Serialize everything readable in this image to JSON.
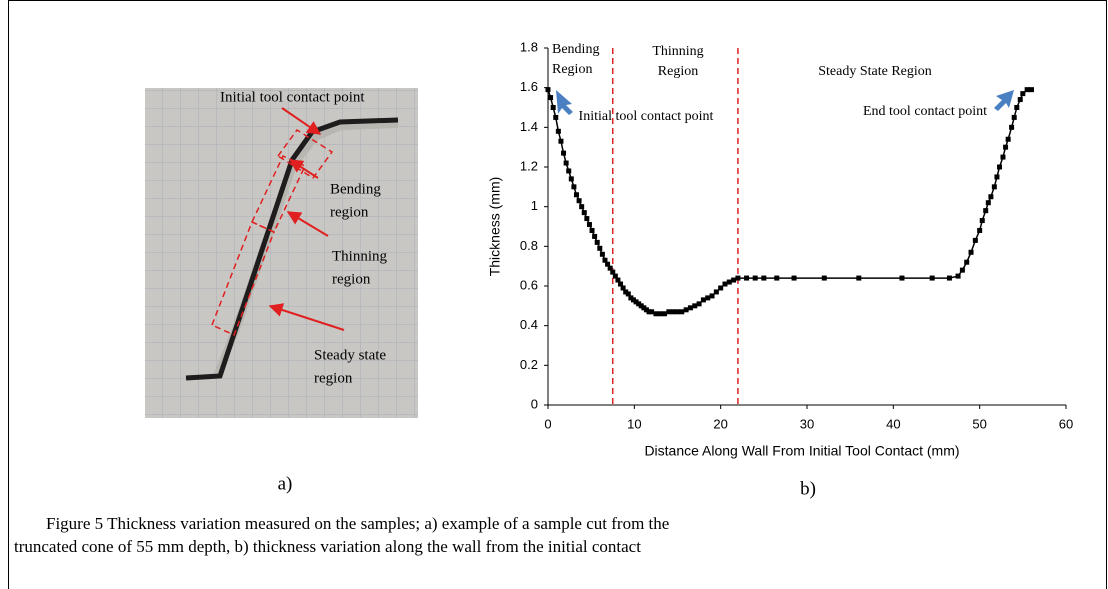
{
  "photo": {
    "labels": [
      [
        "Initial tool contact point"
      ],
      [
        "Bending",
        "region"
      ],
      [
        "Thinning",
        "region"
      ],
      [
        "Steady state",
        "region"
      ]
    ],
    "sublabel": "a)"
  },
  "chart_data": {
    "type": "line",
    "sublabel": "b)",
    "x_label": "Distance Along Wall From Initial Tool Contact (mm)",
    "y_label": "Thickness (mm)",
    "x": [
      0,
      0.3,
      0.6,
      0.9,
      1.2,
      1.5,
      1.8,
      2.1,
      2.4,
      2.7,
      3,
      3.3,
      3.6,
      3.9,
      4.2,
      4.5,
      4.8,
      5.1,
      5.4,
      5.7,
      6,
      6.3,
      6.6,
      6.9,
      7.2,
      7.5,
      7.8,
      8.1,
      8.4,
      8.7,
      9,
      9.3,
      9.6,
      9.9,
      10.2,
      10.5,
      10.8,
      11.1,
      11.4,
      11.7,
      12,
      12.5,
      13,
      13.5,
      14,
      14.5,
      15,
      15.5,
      16,
      16.5,
      17,
      17.5,
      18,
      18.5,
      19,
      19.5,
      20,
      20.5,
      21,
      21.5,
      22,
      23,
      24,
      25,
      26.5,
      28.5,
      32,
      36,
      41,
      44.5,
      46.5,
      47.5,
      48,
      48.5,
      49,
      49.5,
      50,
      50.3,
      50.7,
      51,
      51.3,
      51.7,
      52,
      52.3,
      52.7,
      53,
      53.3,
      53.7,
      54,
      54.3,
      54.7,
      55,
      55.5,
      56
    ],
    "series": [
      {
        "color": "#000000",
        "values": [
          1.59,
          1.55,
          1.5,
          1.45,
          1.38,
          1.33,
          1.27,
          1.22,
          1.18,
          1.14,
          1.1,
          1.06,
          1.03,
          1.0,
          0.97,
          0.94,
          0.91,
          0.88,
          0.85,
          0.82,
          0.79,
          0.76,
          0.73,
          0.71,
          0.69,
          0.67,
          0.65,
          0.63,
          0.61,
          0.59,
          0.57,
          0.56,
          0.54,
          0.53,
          0.52,
          0.51,
          0.5,
          0.49,
          0.48,
          0.47,
          0.47,
          0.46,
          0.46,
          0.46,
          0.47,
          0.47,
          0.47,
          0.47,
          0.48,
          0.49,
          0.5,
          0.51,
          0.53,
          0.54,
          0.55,
          0.57,
          0.59,
          0.61,
          0.62,
          0.63,
          0.64,
          0.64,
          0.64,
          0.64,
          0.64,
          0.64,
          0.64,
          0.64,
          0.64,
          0.64,
          0.64,
          0.65,
          0.68,
          0.72,
          0.77,
          0.83,
          0.88,
          0.93,
          0.98,
          1.02,
          1.05,
          1.1,
          1.15,
          1.2,
          1.25,
          1.3,
          1.34,
          1.4,
          1.45,
          1.5,
          1.54,
          1.57,
          1.59,
          1.59
        ]
      }
    ],
    "xlim": [
      0,
      60
    ],
    "xticks": [
      0,
      10,
      20,
      30,
      40,
      50,
      60
    ],
    "ylim": [
      0,
      1.8
    ],
    "yticks": [
      0,
      0.2,
      0.4,
      0.6,
      0.8,
      1,
      1.2,
      1.4,
      1.6,
      1.8
    ],
    "vlines": {
      "color": "#e02020",
      "x": [
        7.5,
        22
      ]
    },
    "annotations": [
      [
        "Bending",
        "Region"
      ],
      [
        "Thinning",
        "Region"
      ],
      [
        "Steady State Region"
      ],
      [
        "Initial tool contact point"
      ],
      [
        "End tool contact point"
      ]
    ]
  },
  "caption": [
    "Figure 5 Thickness variation measured on the samples; a) example of a sample cut from the",
    "truncated cone of 55 mm depth, b) thickness variation along the wall from the initial contact"
  ]
}
